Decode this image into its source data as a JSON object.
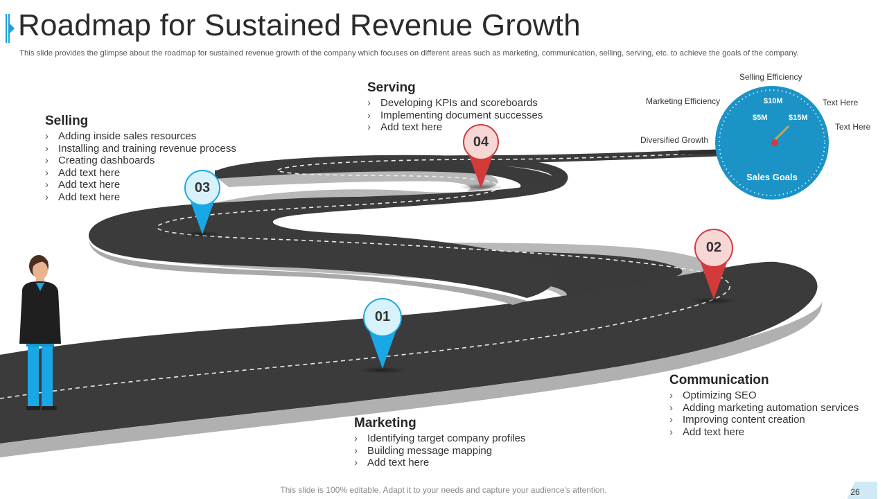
{
  "header": {
    "title": "Roadmap for Sustained Revenue Growth",
    "subtitle": "This slide provides the glimpse about the roadmap for sustained revenue growth of the company which focuses on different areas such as marketing, communication, selling, serving, etc. to achieve the goals of the company."
  },
  "steps": [
    {
      "number": "01",
      "heading": "Marketing",
      "items": [
        "Identifying target company profiles",
        "Building message mapping",
        "Add text here"
      ]
    },
    {
      "number": "02",
      "heading": "Communication",
      "items": [
        "Optimizing SEO",
        "Adding marketing automation services",
        "Improving content creation",
        "Add text here"
      ]
    },
    {
      "number": "03",
      "heading": "Selling",
      "items": [
        "Adding inside sales resources",
        "Installing and training revenue process",
        "Creating dashboards",
        "Add text here",
        "Add text here",
        "Add text here"
      ]
    },
    {
      "number": "04",
      "heading": "Serving",
      "items": [
        "Developing KPIs and scoreboards",
        "Implementing document successes",
        "Add text here"
      ]
    }
  ],
  "bullet_glyph": "›",
  "gauge": {
    "title": "Sales Goals",
    "ticks": [
      "$5M",
      "$10M",
      "$15M"
    ],
    "labels": {
      "selling_efficiency": "Selling Efficiency",
      "marketing_efficiency": "Marketing Efficiency",
      "diversified_growth": "Diversified Growth",
      "text_here_1": "Text Here",
      "text_here_2": "Text Here"
    },
    "color": "#1b93c6"
  },
  "colors": {
    "accent": "#1e9fd6",
    "road": "#3b3b3b",
    "pin_blue": "#1aa7e6",
    "pin_red": "#d33a3a"
  },
  "footer": {
    "note": "This slide is 100% editable. Adapt it to your needs and capture your audience's attention.",
    "page": "26"
  }
}
